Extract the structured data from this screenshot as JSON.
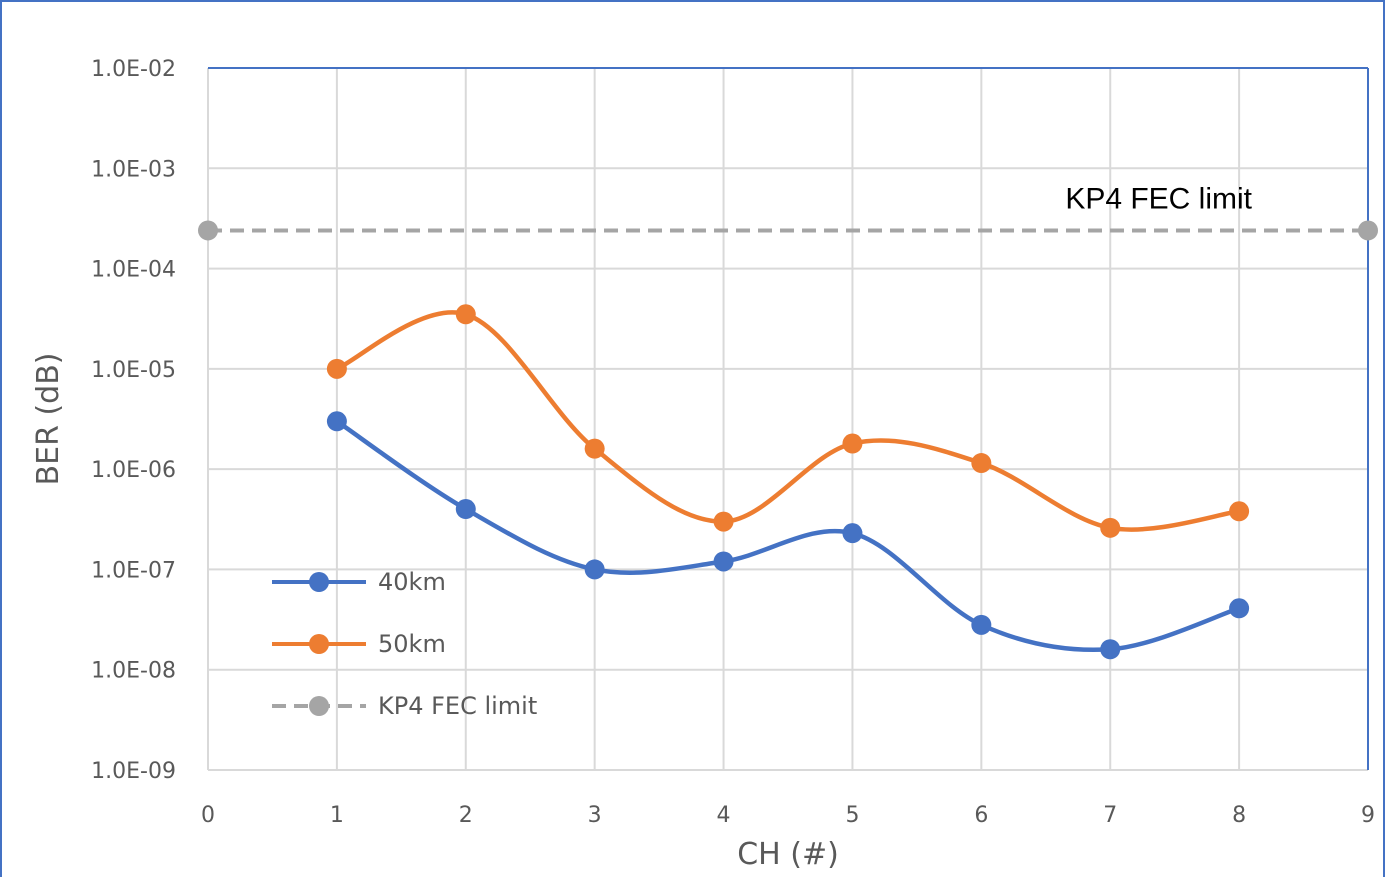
{
  "chart_data": {
    "type": "line",
    "title": "",
    "xlabel": "CH (#)",
    "ylabel": "BER (dB)",
    "xlim": [
      0,
      9
    ],
    "xticks": [
      "0",
      "1",
      "2",
      "3",
      "4",
      "5",
      "6",
      "7",
      "8",
      "9"
    ],
    "yscale": "log",
    "ylim": [
      1e-09,
      0.01
    ],
    "yticks": [
      {
        "value": 0.01,
        "label": "1.0E-02"
      },
      {
        "value": 0.001,
        "label": "1.0E-03"
      },
      {
        "value": 0.0001,
        "label": "1.0E-04"
      },
      {
        "value": 1e-05,
        "label": "1.0E-05"
      },
      {
        "value": 1e-06,
        "label": "1.0E-06"
      },
      {
        "value": 1e-07,
        "label": "1.0E-07"
      },
      {
        "value": 1e-08,
        "label": "1.0E-08"
      },
      {
        "value": 1e-09,
        "label": "1.0E-09"
      }
    ],
    "grid": true,
    "legend_position": "bottom-left",
    "series": [
      {
        "name": "40km",
        "color": "#4472c4",
        "smooth": true,
        "x": [
          1,
          2,
          3,
          4,
          5,
          6,
          7,
          8
        ],
        "y": [
          3e-06,
          4e-07,
          1e-07,
          1.2e-07,
          2.3e-07,
          2.8e-08,
          1.6e-08,
          4.1e-08
        ]
      },
      {
        "name": "50km",
        "color": "#ed7d31",
        "smooth": true,
        "x": [
          1,
          2,
          3,
          4,
          5,
          6,
          7,
          8
        ],
        "y": [
          1e-05,
          3.5e-05,
          1.6e-06,
          3e-07,
          1.8e-06,
          1.15e-06,
          2.6e-07,
          3.8e-07
        ]
      },
      {
        "name": "KP4 FEC limit",
        "color": "#a5a5a5",
        "dashed": true,
        "x": [
          0,
          9
        ],
        "y": [
          0.00024,
          0.00024
        ]
      }
    ],
    "annotations": [
      {
        "text": "KP4 FEC limit",
        "x": 7.5,
        "y": 0.0005
      }
    ]
  }
}
